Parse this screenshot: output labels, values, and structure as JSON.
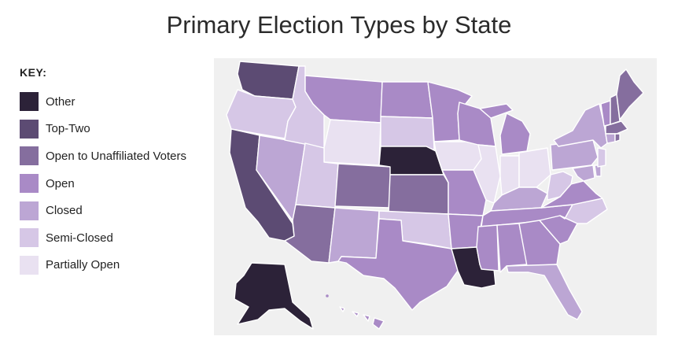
{
  "title": "Primary Election Types by State",
  "legend": {
    "heading": "KEY:",
    "items": [
      {
        "label": "Other",
        "color": "#2c2238"
      },
      {
        "label": "Top-Two",
        "color": "#5c4b73"
      },
      {
        "label": "Open to Unaffiliated Voters",
        "color": "#856e9e"
      },
      {
        "label": "Open",
        "color": "#a98ac6"
      },
      {
        "label": "Closed",
        "color": "#bca6d4"
      },
      {
        "label": "Semi-Closed",
        "color": "#d6c7e6"
      },
      {
        "label": "Partially Open",
        "color": "#e9e1f1"
      }
    ]
  },
  "map_background": "#f0f0f0",
  "states": [
    {
      "name": "Washington",
      "type": "Top-Two"
    },
    {
      "name": "Oregon",
      "type": "Semi-Closed"
    },
    {
      "name": "California",
      "type": "Top-Two"
    },
    {
      "name": "Nevada",
      "type": "Closed"
    },
    {
      "name": "Idaho",
      "type": "Semi-Closed"
    },
    {
      "name": "Montana",
      "type": "Open"
    },
    {
      "name": "Wyoming",
      "type": "Partially Open"
    },
    {
      "name": "Utah",
      "type": "Semi-Closed"
    },
    {
      "name": "Arizona",
      "type": "Open to Unaffiliated Voters"
    },
    {
      "name": "Colorado",
      "type": "Open to Unaffiliated Voters"
    },
    {
      "name": "New Mexico",
      "type": "Closed"
    },
    {
      "name": "North Dakota",
      "type": "Open"
    },
    {
      "name": "South Dakota",
      "type": "Semi-Closed"
    },
    {
      "name": "Nebraska",
      "type": "Other"
    },
    {
      "name": "Kansas",
      "type": "Open to Unaffiliated Voters"
    },
    {
      "name": "Oklahoma",
      "type": "Semi-Closed"
    },
    {
      "name": "Texas",
      "type": "Open"
    },
    {
      "name": "Minnesota",
      "type": "Open"
    },
    {
      "name": "Iowa",
      "type": "Partially Open"
    },
    {
      "name": "Missouri",
      "type": "Open"
    },
    {
      "name": "Arkansas",
      "type": "Open"
    },
    {
      "name": "Louisiana",
      "type": "Other"
    },
    {
      "name": "Wisconsin",
      "type": "Open"
    },
    {
      "name": "Illinois",
      "type": "Partially Open"
    },
    {
      "name": "Indiana",
      "type": "Partially Open"
    },
    {
      "name": "Michigan",
      "type": "Open"
    },
    {
      "name": "Ohio",
      "type": "Partially Open"
    },
    {
      "name": "Kentucky",
      "type": "Closed"
    },
    {
      "name": "Tennessee",
      "type": "Open"
    },
    {
      "name": "Mississippi",
      "type": "Open"
    },
    {
      "name": "Alabama",
      "type": "Open"
    },
    {
      "name": "Georgia",
      "type": "Open"
    },
    {
      "name": "Florida",
      "type": "Closed"
    },
    {
      "name": "South Carolina",
      "type": "Open"
    },
    {
      "name": "North Carolina",
      "type": "Semi-Closed"
    },
    {
      "name": "Virginia",
      "type": "Open"
    },
    {
      "name": "West Virginia",
      "type": "Semi-Closed"
    },
    {
      "name": "Pennsylvania",
      "type": "Closed"
    },
    {
      "name": "New York",
      "type": "Closed"
    },
    {
      "name": "Maryland",
      "type": "Closed"
    },
    {
      "name": "Delaware",
      "type": "Closed"
    },
    {
      "name": "New Jersey",
      "type": "Semi-Closed"
    },
    {
      "name": "Vermont",
      "type": "Open"
    },
    {
      "name": "New Hampshire",
      "type": "Open to Unaffiliated Voters"
    },
    {
      "name": "Maine",
      "type": "Open to Unaffiliated Voters"
    },
    {
      "name": "Massachusetts",
      "type": "Open to Unaffiliated Voters"
    },
    {
      "name": "Connecticut",
      "type": "Closed"
    },
    {
      "name": "Rhode Island",
      "type": "Open to Unaffiliated Voters"
    },
    {
      "name": "Alaska",
      "type": "Other"
    },
    {
      "name": "Hawaii",
      "type": "Open"
    }
  ]
}
